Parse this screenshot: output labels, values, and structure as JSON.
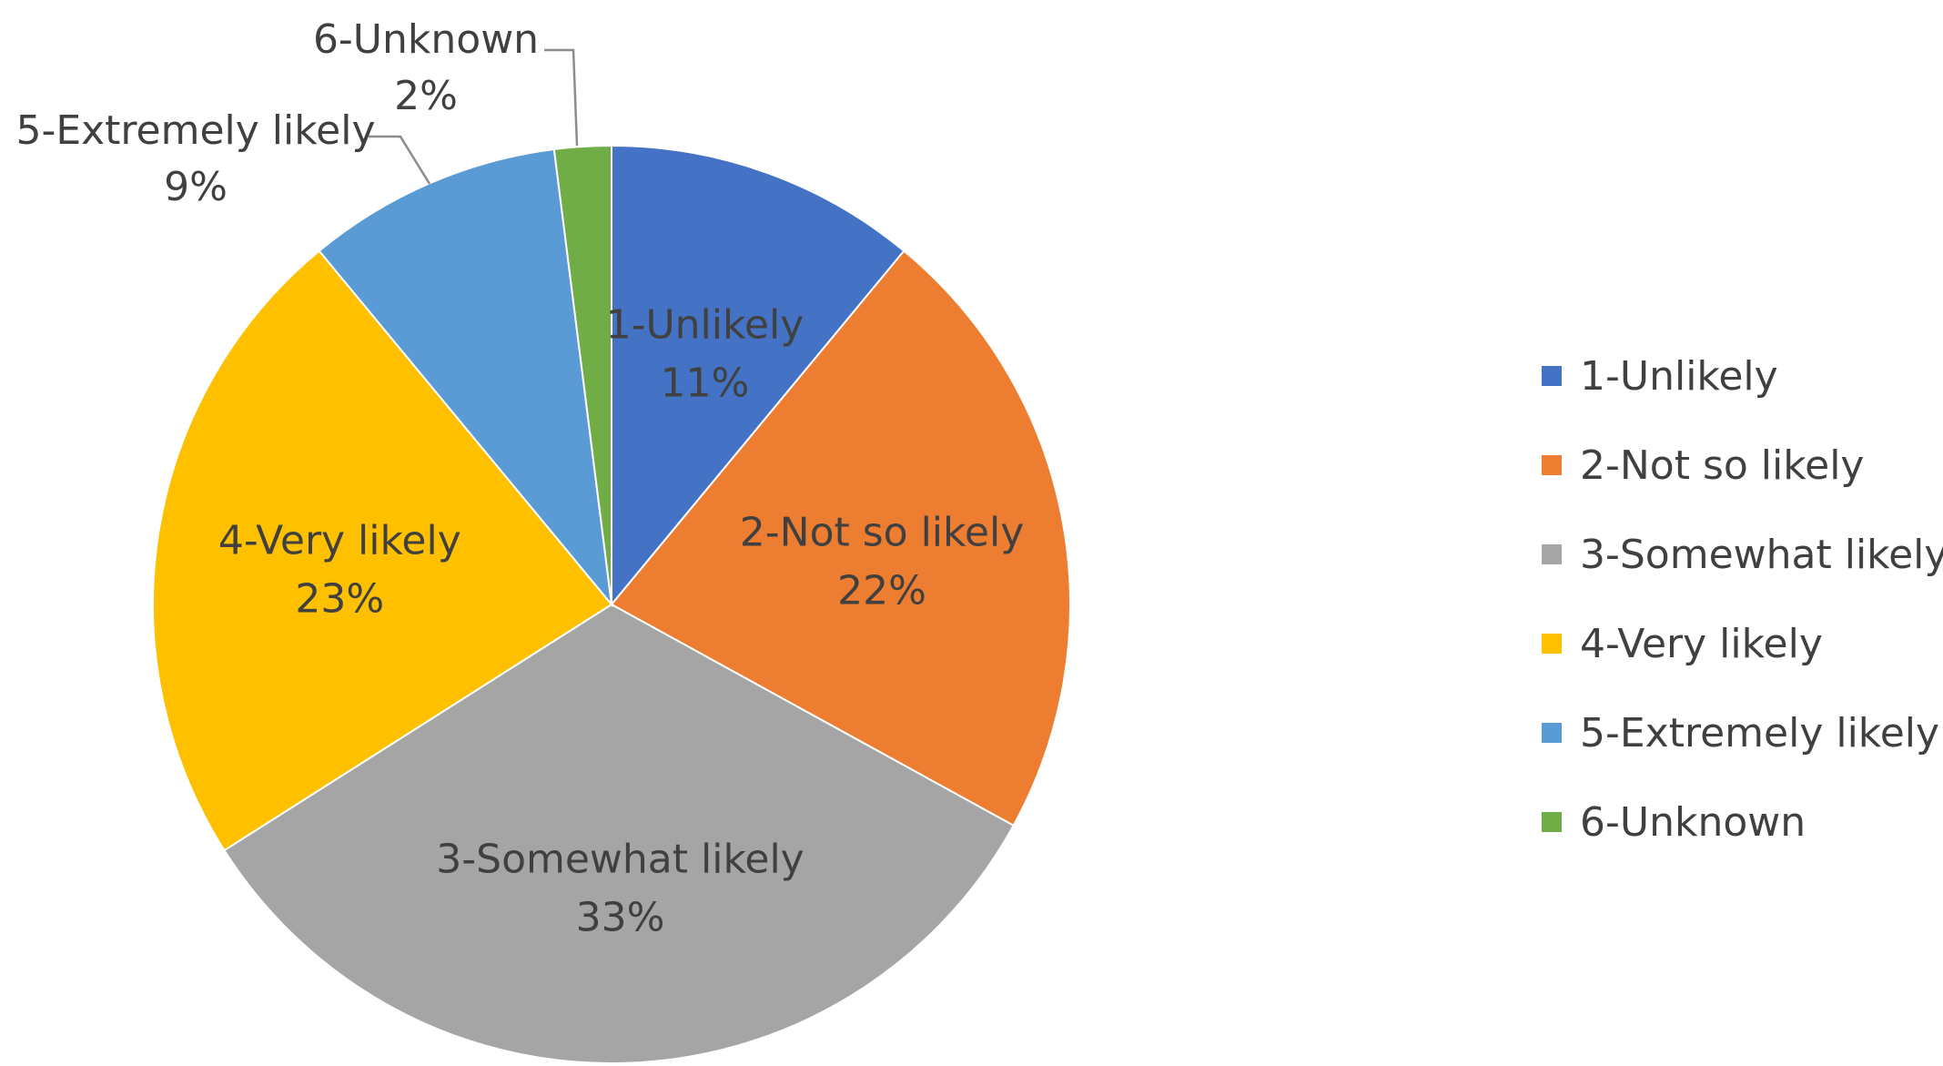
{
  "chart_data": {
    "type": "pie",
    "title": "",
    "slices": [
      {
        "label": "1-Unlikely",
        "value": 11,
        "value_label": "11%",
        "color": "#4472C4",
        "label_position": "inside"
      },
      {
        "label": "2-Not so likely",
        "value": 22,
        "value_label": "22%",
        "color": "#ED7D31",
        "label_position": "inside"
      },
      {
        "label": "3-Somewhat likely",
        "value": 33,
        "value_label": "33%",
        "color": "#A5A5A5",
        "label_position": "inside"
      },
      {
        "label": "4-Very likely",
        "value": 23,
        "value_label": "23%",
        "color": "#FFC000",
        "label_position": "inside"
      },
      {
        "label": "5-Extremely likely",
        "value": 9,
        "value_label": "9%",
        "color": "#5B9BD5",
        "label_position": "outside"
      },
      {
        "label": "6-Unknown",
        "value": 2,
        "value_label": "2%",
        "color": "#70AD47",
        "label_position": "outside"
      }
    ],
    "start_angle_deg": 0,
    "direction": "clockwise",
    "legend": {
      "placement": "right",
      "entries": [
        "1-Unlikely",
        "2-Not so likely",
        "3-Somewhat likely",
        "4-Very likely",
        "5-Extremely likely",
        "6-Unknown"
      ]
    }
  }
}
